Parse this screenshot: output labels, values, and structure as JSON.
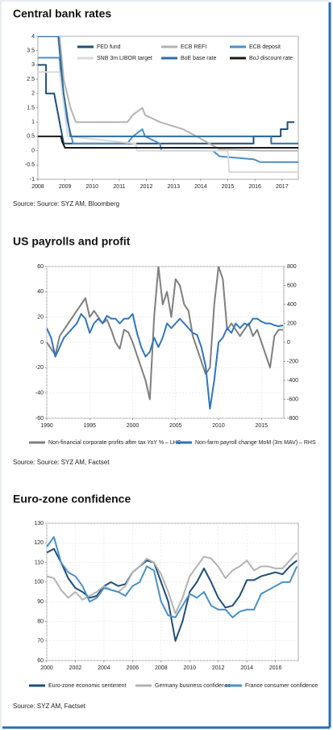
{
  "chart_data": [
    {
      "type": "line",
      "title": "Central bank rates",
      "source": "Source: Source: SYZ AM, Bloomberg",
      "xlim": [
        2008,
        2017.6
      ],
      "xticks": [
        2008,
        2009,
        2010,
        2011,
        2012,
        2013,
        2014,
        2015,
        2016,
        2017
      ],
      "ylim": [
        -1,
        4
      ],
      "yticks": [
        -1,
        -0.5,
        0,
        0.5,
        1,
        1.5,
        2,
        2.5,
        3,
        3.5,
        4
      ],
      "grid": false,
      "series": [
        {
          "name": "FED fund",
          "color": "#1f4e79",
          "x": [
            2008,
            2008.3,
            2008.3,
            2008.6,
            2008.8,
            2008.95,
            2015.95,
            2015.95,
            2016.95,
            2016.95,
            2017.2,
            2017.2,
            2017.45
          ],
          "values": [
            3,
            3,
            2,
            2,
            1,
            0.25,
            0.25,
            0.5,
            0.5,
            0.75,
            0.75,
            1,
            1
          ]
        },
        {
          "name": "ECB REFI",
          "color": "#b3b3b3",
          "x": [
            2008,
            2008.8,
            2008.95,
            2009.2,
            2009.4,
            2011.3,
            2011.5,
            2011.85,
            2011.95,
            2012.5,
            2013.35,
            2013.85,
            2014.7,
            2016.2,
            2017.6
          ],
          "values": [
            4,
            4,
            2.5,
            1.5,
            1,
            1,
            1.25,
            1.5,
            1.25,
            1,
            0.75,
            0.5,
            0.05,
            0,
            0
          ]
        },
        {
          "name": "ECB deposit",
          "color": "#4a90c8",
          "x": [
            2008,
            2008.8,
            2008.9,
            2009.1,
            2009.3,
            2011.3,
            2011.5,
            2011.85,
            2011.95,
            2012.5,
            2012.55,
            2014.45,
            2014.7,
            2015.95,
            2016.2,
            2017.6
          ],
          "values": [
            3.25,
            3.25,
            2,
            1,
            0.25,
            0.25,
            0.5,
            0.75,
            0.5,
            0.25,
            0,
            0,
            -0.2,
            -0.3,
            -0.4,
            -0.4
          ]
        },
        {
          "name": "SNB 3m LIBOR target",
          "color": "#dadada",
          "x": [
            2008,
            2008.8,
            2009.1,
            2011.6,
            2011.65,
            2015.0,
            2015.05,
            2017.6
          ],
          "values": [
            2.75,
            2.75,
            0.5,
            0.25,
            0,
            0,
            -0.75,
            -0.75
          ]
        },
        {
          "name": "BoE base rate",
          "color": "#2e6da4",
          "x": [
            2008,
            2008.75,
            2008.85,
            2008.95,
            2009.2,
            2016.6,
            2016.6,
            2017.6
          ],
          "values": [
            4,
            4,
            3,
            2,
            0.5,
            0.5,
            0.25,
            0.25
          ]
        },
        {
          "name": "BoJ discount rate",
          "color": "#1a1a1a",
          "x": [
            2008,
            2008.85,
            2008.9,
            2009.0,
            2017.6
          ],
          "values": [
            0.5,
            0.5,
            0.3,
            0.1,
            0.1
          ]
        }
      ]
    },
    {
      "type": "line",
      "title": "US payrolls and profit",
      "source": "Source: Source: SYZ AM, Factset",
      "xlim": [
        1990,
        2017.6
      ],
      "xticks": [
        1990,
        1995,
        2000,
        2005,
        2010,
        2015
      ],
      "ylim": [
        -60,
        60
      ],
      "yticks": [
        -60,
        -40,
        -20,
        0,
        20,
        40,
        60
      ],
      "y2lim": [
        -800,
        800
      ],
      "y2ticks": [
        -800,
        -600,
        -400,
        -200,
        0,
        200,
        400,
        600,
        800
      ],
      "grid": true,
      "x": [
        1990,
        1990.5,
        1991,
        1991.5,
        1992,
        1992.5,
        1993,
        1993.5,
        1994,
        1994.5,
        1995,
        1995.5,
        1996,
        1996.5,
        1997,
        1997.5,
        1998,
        1998.5,
        1999,
        1999.5,
        2000,
        2000.5,
        2001,
        2001.5,
        2002,
        2002.5,
        2003,
        2003.5,
        2004,
        2004.5,
        2005,
        2005.5,
        2006,
        2006.5,
        2007,
        2007.5,
        2008,
        2008.5,
        2009,
        2009.5,
        2010,
        2010.5,
        2011,
        2011.5,
        2012,
        2012.5,
        2013,
        2013.5,
        2014,
        2014.5,
        2015,
        2015.5,
        2016,
        2016.5,
        2017,
        2017.5
      ],
      "series": [
        {
          "name": "Non-financial corporate profits after tax YoY % – LHS",
          "color": "#7f7f7f",
          "values": [
            0,
            -5,
            -10,
            5,
            10,
            15,
            20,
            25,
            30,
            35,
            20,
            25,
            20,
            15,
            18,
            10,
            0,
            -5,
            10,
            8,
            0,
            -10,
            -20,
            -30,
            -45,
            20,
            60,
            30,
            40,
            20,
            50,
            45,
            30,
            25,
            5,
            -5,
            -15,
            -25,
            -20,
            30,
            60,
            50,
            10,
            15,
            10,
            5,
            10,
            15,
            5,
            10,
            0,
            -10,
            -20,
            5,
            10,
            10
          ]
        },
        {
          "name": "Non-farm payroll change MoM (3m MAV) – RHS",
          "color": "#2e75c0",
          "axis": "y2",
          "values": [
            150,
            50,
            -150,
            -50,
            50,
            100,
            150,
            200,
            300,
            250,
            100,
            200,
            250,
            200,
            280,
            250,
            250,
            200,
            250,
            250,
            300,
            100,
            -50,
            -150,
            -100,
            50,
            -50,
            50,
            200,
            150,
            200,
            250,
            200,
            150,
            100,
            80,
            -50,
            -250,
            -700,
            -400,
            0,
            50,
            150,
            100,
            200,
            150,
            200,
            180,
            250,
            250,
            220,
            200,
            200,
            180,
            170,
            180
          ]
        }
      ]
    },
    {
      "type": "line",
      "title": "Euro-zone confidence",
      "source": "Source: SYZ AM, Factset",
      "xlim": [
        2000,
        2017.6
      ],
      "xticks": [
        2000,
        2002,
        2004,
        2006,
        2008,
        2010,
        2012,
        2014,
        2016
      ],
      "ylim": [
        60,
        130
      ],
      "yticks": [
        60,
        70,
        80,
        90,
        100,
        110,
        120,
        130
      ],
      "grid": true,
      "x": [
        2000,
        2000.5,
        2001,
        2001.5,
        2002,
        2002.5,
        2003,
        2003.5,
        2004,
        2004.5,
        2005,
        2005.5,
        2006,
        2006.5,
        2007,
        2007.5,
        2008,
        2008.5,
        2009,
        2009.5,
        2010,
        2010.5,
        2011,
        2011.5,
        2012,
        2012.5,
        2013,
        2013.5,
        2014,
        2014.5,
        2015,
        2015.5,
        2016,
        2016.5,
        2017,
        2017.5
      ],
      "series": [
        {
          "name": "Euro-zone economic sentiment",
          "color": "#1f4e79",
          "values": [
            115,
            117,
            110,
            102,
            97,
            95,
            92,
            93,
            98,
            100,
            98,
            99,
            105,
            108,
            111,
            110,
            100,
            90,
            70,
            80,
            95,
            100,
            107,
            100,
            92,
            87,
            88,
            93,
            101,
            101,
            103,
            104,
            105,
            104,
            108,
            111
          ]
        },
        {
          "name": "Germany business confidence",
          "color": "#b3b3b3",
          "values": [
            103,
            102,
            96,
            92,
            95,
            91,
            93,
            95,
            98,
            96,
            95,
            98,
            105,
            108,
            112,
            110,
            104,
            95,
            84,
            92,
            103,
            108,
            113,
            112,
            108,
            102,
            106,
            108,
            111,
            106,
            108,
            108,
            107,
            107,
            111,
            115
          ]
        },
        {
          "name": "France consumer confidence",
          "color": "#4a90c8",
          "values": [
            118,
            123,
            110,
            105,
            103,
            98,
            90,
            92,
            97,
            96,
            95,
            93,
            98,
            100,
            108,
            106,
            90,
            83,
            82,
            88,
            94,
            92,
            95,
            88,
            86,
            86,
            82,
            85,
            86,
            86,
            94,
            96,
            98,
            100,
            100,
            108
          ]
        }
      ]
    }
  ]
}
